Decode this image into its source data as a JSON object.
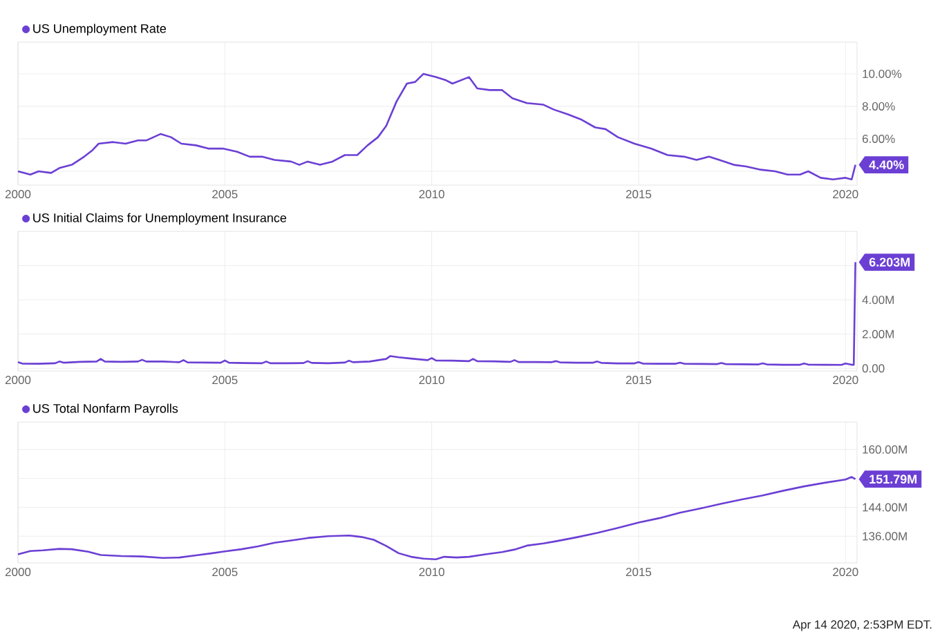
{
  "chart_data": [
    {
      "type": "line",
      "legend": "top left",
      "grid": true,
      "xlim": [
        2000,
        2020.28
      ],
      "xticks": [
        2000,
        2005,
        2010,
        2015,
        2020
      ],
      "ylim": [
        3.15,
        11.95
      ],
      "yticks": [
        {
          "value": 4,
          "label": null
        },
        {
          "value": 6,
          "label": "6.00%"
        },
        {
          "value": 8,
          "label": "8.00%"
        },
        {
          "value": 10,
          "label": "10.00%"
        }
      ],
      "series": [
        {
          "name": "US Unemployment Rate",
          "color": "#6b3fd4",
          "x": [
            2000.0,
            2000.3,
            2000.5,
            2000.8,
            2001.0,
            2001.3,
            2001.6,
            2001.8,
            2001.95,
            2002.3,
            2002.6,
            2002.9,
            2003.1,
            2003.45,
            2003.7,
            2003.95,
            2004.3,
            2004.6,
            2004.95,
            2005.3,
            2005.6,
            2005.9,
            2006.2,
            2006.6,
            2006.8,
            2007.0,
            2007.3,
            2007.6,
            2007.9,
            2008.2,
            2008.45,
            2008.7,
            2008.9,
            2009.15,
            2009.4,
            2009.6,
            2009.8,
            2010.1,
            2010.35,
            2010.5,
            2010.9,
            2011.1,
            2011.4,
            2011.7,
            2011.95,
            2012.3,
            2012.7,
            2012.95,
            2013.3,
            2013.6,
            2013.95,
            2014.2,
            2014.5,
            2014.9,
            2015.3,
            2015.7,
            2016.1,
            2016.4,
            2016.7,
            2016.95,
            2017.3,
            2017.6,
            2017.95,
            2018.3,
            2018.6,
            2018.9,
            2019.1,
            2019.4,
            2019.7,
            2020.0,
            2020.15,
            2020.24
          ],
          "values": [
            4.0,
            3.8,
            4.0,
            3.9,
            4.2,
            4.4,
            4.9,
            5.3,
            5.7,
            5.8,
            5.7,
            5.9,
            5.9,
            6.3,
            6.1,
            5.7,
            5.6,
            5.4,
            5.4,
            5.2,
            4.9,
            4.9,
            4.7,
            4.6,
            4.4,
            4.6,
            4.4,
            4.6,
            5.0,
            5.0,
            5.6,
            6.1,
            6.8,
            8.3,
            9.4,
            9.5,
            10.0,
            9.8,
            9.6,
            9.4,
            9.8,
            9.1,
            9.0,
            9.0,
            8.5,
            8.2,
            8.1,
            7.8,
            7.5,
            7.2,
            6.7,
            6.6,
            6.1,
            5.7,
            5.4,
            5.0,
            4.9,
            4.7,
            4.9,
            4.7,
            4.4,
            4.3,
            4.1,
            4.0,
            3.8,
            3.8,
            4.0,
            3.6,
            3.5,
            3.6,
            3.5,
            4.4
          ]
        }
      ],
      "annotations": [
        "4.40%"
      ]
    },
    {
      "type": "line",
      "legend": "top left",
      "grid": true,
      "xlim": [
        2000,
        2020.28
      ],
      "xticks": [
        2000,
        2005,
        2010,
        2015,
        2020
      ],
      "ylim": [
        -0.15,
        8
      ],
      "yticks": [
        {
          "value": 0,
          "label": "0.00"
        },
        {
          "value": 2,
          "label": "2.00M"
        },
        {
          "value": 4,
          "label": "4.00M"
        },
        {
          "value": 6,
          "label": null
        }
      ],
      "series": [
        {
          "name": "US Initial Claims for Unemployment Insurance",
          "color": "#6b3fd4",
          "x": [
            2000.0,
            2000.1,
            2000.5,
            2000.9,
            2001.0,
            2001.1,
            2001.5,
            2001.9,
            2002.0,
            2002.1,
            2002.5,
            2002.9,
            2003.0,
            2003.1,
            2003.5,
            2003.9,
            2004.0,
            2004.1,
            2004.5,
            2004.9,
            2005.0,
            2005.1,
            2005.5,
            2005.9,
            2006.0,
            2006.1,
            2006.5,
            2006.9,
            2007.0,
            2007.1,
            2007.5,
            2007.9,
            2008.0,
            2008.1,
            2008.5,
            2008.9,
            2009.0,
            2009.2,
            2009.5,
            2009.9,
            2010.0,
            2010.1,
            2010.5,
            2010.9,
            2011.0,
            2011.1,
            2011.5,
            2011.9,
            2012.0,
            2012.1,
            2012.5,
            2012.9,
            2013.0,
            2013.1,
            2013.5,
            2013.9,
            2014.0,
            2014.1,
            2014.5,
            2014.9,
            2015.0,
            2015.1,
            2015.5,
            2015.9,
            2016.0,
            2016.1,
            2016.5,
            2016.9,
            2017.0,
            2017.1,
            2017.5,
            2017.9,
            2018.0,
            2018.1,
            2018.5,
            2018.9,
            2019.0,
            2019.1,
            2019.5,
            2019.9,
            2020.0,
            2020.15,
            2020.2,
            2020.22,
            2020.24
          ],
          "values": [
            0.36,
            0.28,
            0.27,
            0.3,
            0.4,
            0.33,
            0.38,
            0.4,
            0.55,
            0.4,
            0.38,
            0.4,
            0.5,
            0.4,
            0.4,
            0.36,
            0.48,
            0.35,
            0.34,
            0.33,
            0.46,
            0.33,
            0.31,
            0.3,
            0.4,
            0.3,
            0.3,
            0.31,
            0.42,
            0.32,
            0.3,
            0.34,
            0.45,
            0.36,
            0.4,
            0.55,
            0.72,
            0.65,
            0.57,
            0.48,
            0.6,
            0.46,
            0.45,
            0.42,
            0.55,
            0.42,
            0.41,
            0.38,
            0.48,
            0.37,
            0.37,
            0.36,
            0.42,
            0.35,
            0.33,
            0.33,
            0.4,
            0.32,
            0.29,
            0.29,
            0.36,
            0.28,
            0.27,
            0.27,
            0.33,
            0.27,
            0.26,
            0.25,
            0.31,
            0.25,
            0.24,
            0.23,
            0.29,
            0.23,
            0.21,
            0.21,
            0.28,
            0.22,
            0.21,
            0.2,
            0.28,
            0.21,
            0.21,
            3.3,
            6.203
          ]
        }
      ],
      "annotations": [
        "6.203M"
      ]
    },
    {
      "type": "line",
      "legend": "top left",
      "grid": true,
      "xlim": [
        2000,
        2020.28
      ],
      "xticks": [
        2000,
        2005,
        2010,
        2015,
        2020
      ],
      "ylim": [
        128.6,
        167.6
      ],
      "yticks": [
        {
          "value": 136,
          "label": "136.00M"
        },
        {
          "value": 144,
          "label": "144.00M"
        },
        {
          "value": 152,
          "label": null
        },
        {
          "value": 160,
          "label": "160.00M"
        }
      ],
      "series": [
        {
          "name": "US Total Nonfarm Payrolls",
          "color": "#6b3fd4",
          "x": [
            2000.0,
            2000.3,
            2000.6,
            2001.0,
            2001.3,
            2001.7,
            2002.0,
            2002.5,
            2003.0,
            2003.5,
            2003.9,
            2004.3,
            2004.7,
            2005.0,
            2005.4,
            2005.8,
            2006.2,
            2006.6,
            2007.0,
            2007.5,
            2008.0,
            2008.3,
            2008.6,
            2008.9,
            2009.2,
            2009.5,
            2009.8,
            2010.1,
            2010.3,
            2010.6,
            2010.9,
            2011.3,
            2011.7,
            2012.0,
            2012.3,
            2012.7,
            2013.0,
            2013.5,
            2014.0,
            2014.5,
            2015.0,
            2015.5,
            2016.0,
            2016.5,
            2017.0,
            2017.5,
            2018.0,
            2018.5,
            2019.0,
            2019.5,
            2020.0,
            2020.15,
            2020.24
          ],
          "values": [
            131.0,
            131.9,
            132.1,
            132.5,
            132.4,
            131.7,
            130.8,
            130.5,
            130.4,
            130.0,
            130.1,
            130.7,
            131.3,
            131.8,
            132.4,
            133.2,
            134.2,
            134.8,
            135.5,
            136.0,
            136.2,
            135.8,
            135.0,
            133.3,
            131.3,
            130.3,
            129.8,
            129.6,
            130.3,
            130.1,
            130.3,
            131.0,
            131.6,
            132.3,
            133.4,
            134.0,
            134.6,
            135.7,
            136.9,
            138.3,
            139.8,
            141.0,
            142.5,
            143.7,
            145.0,
            146.2,
            147.3,
            148.6,
            149.8,
            150.8,
            151.7,
            152.4,
            151.79
          ]
        }
      ],
      "annotations": [
        "151.79M",
        "Apr 14 2020, 2:53PM EDT."
      ]
    }
  ]
}
